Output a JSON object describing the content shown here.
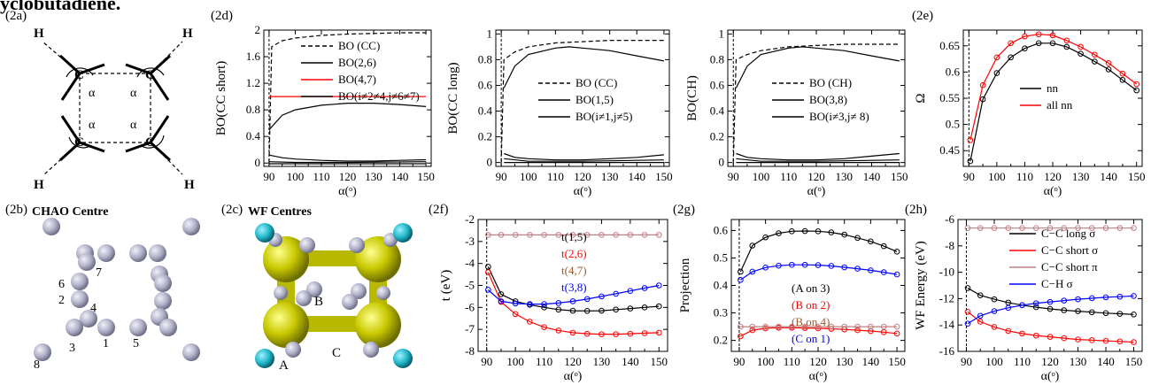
{
  "header_fragment": "yclobutadiene.",
  "panels": {
    "a": "(2a)",
    "b": "(2b)",
    "c": "(2c)",
    "d": "(2d)",
    "e": "(2e)",
    "f": "(2f)",
    "g": "(2g)",
    "h": "(2h)"
  },
  "molecule_2a": {
    "atom": "C",
    "hydrogen": "H",
    "angle": "α"
  },
  "panel_2b": {
    "title": "CHAO Centre",
    "numbers": [
      "7",
      "6",
      "2",
      "4",
      "3",
      "1",
      "5",
      "8"
    ]
  },
  "panel_2c": {
    "title": "WF Centres",
    "labels": [
      "B",
      "A",
      "C"
    ]
  },
  "colors": {
    "black": "#000000",
    "red": "#ff0000",
    "brown": "#a05a2c",
    "blue": "#0000ff",
    "gray": "#c08080",
    "yellow": "#c8c800",
    "cyan": "#20b8c8",
    "atom_gray": "#b8b8cc"
  },
  "chart_data": [
    {
      "id": "d1",
      "type": "line",
      "xlabel": "α(ᵒ)",
      "ylabel": "BO(CC short)",
      "xlim": [
        88,
        152
      ],
      "ylim": [
        -0.05,
        2.0
      ],
      "xticks": [
        "90",
        "100",
        "110",
        "120",
        "130",
        "140",
        "150"
      ],
      "yticks": [
        "0",
        "0.4",
        "0.8",
        "1.2",
        "1.6",
        "2"
      ],
      "legend": [
        "BO (CC)",
        "BO(2,6)",
        "BO(4,7)",
        "BO(i≠2≠4,j≠6≠7)"
      ],
      "series": [
        {
          "name": "BO (CC)",
          "style": "dashed",
          "color": "#000000",
          "x": [
            90,
            91,
            95,
            100,
            110,
            120,
            130,
            140,
            150
          ],
          "y": [
            0.0,
            1.75,
            1.84,
            1.88,
            1.92,
            1.94,
            1.95,
            1.96,
            1.96
          ]
        },
        {
          "name": "BO(2,6)",
          "style": "solid",
          "color": "#000000",
          "x": [
            90,
            95,
            100,
            110,
            120,
            130,
            140,
            150
          ],
          "y": [
            0.5,
            0.72,
            0.8,
            0.87,
            0.9,
            0.9,
            0.88,
            0.85
          ]
        },
        {
          "name": "BO(4,7)",
          "style": "solid",
          "color": "#ff0000",
          "x": [
            90,
            150
          ],
          "y": [
            1.0,
            1.0
          ]
        },
        {
          "name": "BO(i≠2≠4,j≠6≠7)",
          "style": "solid",
          "color": "#000000",
          "x": [
            90,
            95,
            100,
            110,
            120,
            130,
            140,
            150
          ],
          "y": [
            0.12,
            0.08,
            0.06,
            0.04,
            0.03,
            0.03,
            0.04,
            0.05
          ]
        },
        {
          "name": "",
          "style": "solid",
          "color": "#000000",
          "x": [
            90,
            100,
            120,
            150
          ],
          "y": [
            0.02,
            0.01,
            0.01,
            0.02
          ]
        },
        {
          "name": "",
          "style": "solid",
          "color": "#000000",
          "x": [
            90,
            150
          ],
          "y": [
            -0.01,
            -0.01
          ]
        }
      ]
    },
    {
      "id": "d2",
      "type": "line",
      "xlabel": "α(ᵒ)",
      "ylabel": "BO(CC long)",
      "xlim": [
        88,
        152
      ],
      "ylim": [
        -0.03,
        1.03
      ],
      "xticks": [
        "90",
        "100",
        "110",
        "120",
        "130",
        "140",
        "150"
      ],
      "yticks": [
        "0",
        "0.2",
        "0.4",
        "0.6",
        "0.8",
        "1"
      ],
      "legend": [
        "BO (CC)",
        "BO(1,5)",
        "BO(i≠1,j≠5)"
      ],
      "series": [
        {
          "name": "BO (CC)",
          "style": "dashed",
          "color": "#000000",
          "x": [
            90,
            91,
            95,
            100,
            110,
            120,
            130,
            140,
            150
          ],
          "y": [
            0.0,
            0.8,
            0.86,
            0.9,
            0.93,
            0.94,
            0.95,
            0.95,
            0.95
          ]
        },
        {
          "name": "BO(1,5)",
          "style": "solid",
          "color": "#000000",
          "x": [
            91,
            95,
            100,
            110,
            115,
            120,
            130,
            140,
            150
          ],
          "y": [
            0.58,
            0.75,
            0.84,
            0.89,
            0.9,
            0.89,
            0.87,
            0.83,
            0.79
          ]
        },
        {
          "name": "BO(i≠1,j≠5)",
          "style": "solid",
          "color": "#000000",
          "x": [
            91,
            95,
            100,
            110,
            120,
            130,
            140,
            150
          ],
          "y": [
            0.07,
            0.04,
            0.03,
            0.02,
            0.02,
            0.03,
            0.04,
            0.06
          ]
        },
        {
          "name": "",
          "style": "solid",
          "color": "#000000",
          "x": [
            91,
            100,
            120,
            150
          ],
          "y": [
            0.03,
            0.01,
            0.01,
            0.02
          ]
        },
        {
          "name": "",
          "style": "solid",
          "color": "#000000",
          "x": [
            91,
            150
          ],
          "y": [
            0.0,
            0.0
          ]
        }
      ]
    },
    {
      "id": "d3",
      "type": "line",
      "xlabel": "α(ᵒ)",
      "ylabel": "BO(CH)",
      "xlim": [
        88,
        152
      ],
      "ylim": [
        -0.03,
        1.03
      ],
      "xticks": [
        "90",
        "100",
        "110",
        "120",
        "130",
        "140",
        "150"
      ],
      "yticks": [
        "0",
        "0.2",
        "0.4",
        "0.6",
        "0.8",
        "1"
      ],
      "legend": [
        "BO (CH)",
        "BO(3,8)",
        "BO(i≠3,j≠ 8)"
      ],
      "series": [
        {
          "name": "BO (CH)",
          "style": "dashed",
          "color": "#000000",
          "x": [
            90,
            91,
            95,
            100,
            110,
            120,
            130,
            140,
            150
          ],
          "y": [
            0.0,
            0.8,
            0.84,
            0.87,
            0.9,
            0.91,
            0.92,
            0.92,
            0.92
          ]
        },
        {
          "name": "BO(3,8)",
          "style": "solid",
          "color": "#000000",
          "x": [
            91,
            95,
            100,
            110,
            115,
            120,
            130,
            140,
            150
          ],
          "y": [
            0.58,
            0.75,
            0.84,
            0.89,
            0.9,
            0.89,
            0.87,
            0.83,
            0.79
          ]
        },
        {
          "name": "BO(i≠3,j≠ 8)",
          "style": "solid",
          "color": "#000000",
          "x": [
            91,
            95,
            100,
            110,
            120,
            130,
            140,
            150
          ],
          "y": [
            0.07,
            0.04,
            0.03,
            0.02,
            0.02,
            0.03,
            0.05,
            0.07
          ]
        },
        {
          "name": "",
          "style": "solid",
          "color": "#000000",
          "x": [
            91,
            100,
            120,
            150
          ],
          "y": [
            0.03,
            0.01,
            0.01,
            0.02
          ]
        },
        {
          "name": "",
          "style": "solid",
          "color": "#000000",
          "x": [
            91,
            150
          ],
          "y": [
            0.0,
            0.0
          ]
        }
      ]
    },
    {
      "id": "e",
      "type": "line",
      "xlabel": "α(ᵒ)",
      "ylabel": "Ω",
      "xlim": [
        88,
        152
      ],
      "ylim": [
        0.42,
        0.68
      ],
      "xticks": [
        "90",
        "100",
        "110",
        "120",
        "130",
        "140",
        "150"
      ],
      "yticks": [
        "0.45",
        "0.5",
        "0.55",
        "0.6",
        "0.65"
      ],
      "legend": [
        "nn",
        "all nn"
      ],
      "series": [
        {
          "name": "nn",
          "color": "#000000",
          "markers": true,
          "x": [
            90.5,
            95,
            100,
            105,
            110,
            115,
            120,
            125,
            130,
            135,
            140,
            145,
            150
          ],
          "y": [
            0.43,
            0.548,
            0.598,
            0.628,
            0.645,
            0.655,
            0.655,
            0.648,
            0.635,
            0.62,
            0.605,
            0.585,
            0.565
          ]
        },
        {
          "name": "all nn",
          "color": "#ff0000",
          "markers": true,
          "x": [
            90.5,
            95,
            100,
            105,
            110,
            115,
            120,
            125,
            130,
            135,
            140,
            145,
            150
          ],
          "y": [
            0.47,
            0.575,
            0.628,
            0.655,
            0.668,
            0.672,
            0.67,
            0.66,
            0.648,
            0.633,
            0.617,
            0.597,
            0.577
          ]
        }
      ]
    },
    {
      "id": "f",
      "type": "line",
      "xlabel": "α(ᵒ)",
      "ylabel": "t (eV)",
      "xlim": [
        87,
        153
      ],
      "ylim": [
        -8,
        -2
      ],
      "xticks": [
        "90",
        "100",
        "110",
        "120",
        "130",
        "140",
        "150"
      ],
      "yticks": [
        "-8",
        "-7",
        "-6",
        "-5",
        "-4",
        "-3",
        "-2"
      ],
      "legend": [
        "t(1,5)",
        "t(2,6)",
        "t(4,7)",
        "t(3,8)"
      ],
      "series": [
        {
          "name": "t(1,5)",
          "color": "#000000",
          "markers": true,
          "x": [
            90.5,
            95,
            100,
            105,
            110,
            115,
            120,
            125,
            130,
            135,
            140,
            145,
            150
          ],
          "y": [
            -4.15,
            -5.4,
            -5.72,
            -5.88,
            -6.0,
            -6.1,
            -6.15,
            -6.16,
            -6.15,
            -6.1,
            -6.05,
            -6.0,
            -5.95
          ]
        },
        {
          "name": "t(2,6)",
          "color": "#ff0000",
          "markers": true,
          "x": [
            90.5,
            95,
            100,
            105,
            110,
            115,
            120,
            125,
            130,
            135,
            140,
            145,
            150
          ],
          "y": [
            -4.4,
            -5.75,
            -6.3,
            -6.65,
            -6.9,
            -7.05,
            -7.15,
            -7.2,
            -7.22,
            -7.22,
            -7.2,
            -7.17,
            -7.15
          ]
        },
        {
          "name": "t(4,7)",
          "color": "#c08080",
          "markers": true,
          "x": [
            90.5,
            95,
            100,
            105,
            110,
            115,
            120,
            125,
            130,
            135,
            140,
            145,
            150
          ],
          "y": [
            -2.7,
            -2.7,
            -2.7,
            -2.7,
            -2.7,
            -2.7,
            -2.7,
            -2.7,
            -2.7,
            -2.7,
            -2.7,
            -2.7,
            -2.7
          ]
        },
        {
          "name": "t(3,8)",
          "color": "#0000ff",
          "markers": true,
          "x": [
            90.5,
            95,
            100,
            105,
            110,
            115,
            120,
            125,
            130,
            135,
            140,
            145,
            150
          ],
          "y": [
            -5.2,
            -5.72,
            -5.82,
            -5.85,
            -5.85,
            -5.8,
            -5.72,
            -5.62,
            -5.5,
            -5.38,
            -5.25,
            -5.12,
            -5.0
          ]
        }
      ]
    },
    {
      "id": "g",
      "type": "line",
      "xlabel": "α(ᵒ)",
      "ylabel": "Projection",
      "xlim": [
        87,
        153
      ],
      "ylim": [
        0.16,
        0.64
      ],
      "xticks": [
        "90",
        "100",
        "110",
        "120",
        "130",
        "140",
        "150"
      ],
      "yticks": [
        "0.2",
        "0.3",
        "0.4",
        "0.5",
        "0.6"
      ],
      "legend": [
        "(A on 3)",
        "(B on 2)",
        "(B on 4)",
        "(C on 1)"
      ],
      "series": [
        {
          "name": "(A on 3)",
          "color": "#000000",
          "markers": true,
          "x": [
            90.5,
            95,
            100,
            105,
            110,
            115,
            120,
            125,
            130,
            135,
            140,
            145,
            150
          ],
          "y": [
            0.45,
            0.545,
            0.575,
            0.59,
            0.597,
            0.598,
            0.597,
            0.593,
            0.585,
            0.573,
            0.56,
            0.543,
            0.523
          ]
        },
        {
          "name": "(B on 2)",
          "color": "#ff0000",
          "markers": true,
          "x": [
            90.5,
            95,
            100,
            105,
            110,
            115,
            120,
            125,
            130,
            135,
            140,
            145,
            150
          ],
          "y": [
            0.215,
            0.237,
            0.244,
            0.246,
            0.246,
            0.245,
            0.244,
            0.242,
            0.24,
            0.237,
            0.234,
            0.23,
            0.225
          ]
        },
        {
          "name": "(B on 4)",
          "color": "#c08080",
          "markers": true,
          "x": [
            90.5,
            95,
            100,
            105,
            110,
            115,
            120,
            125,
            130,
            135,
            140,
            145,
            150
          ],
          "y": [
            0.25,
            0.25,
            0.25,
            0.25,
            0.25,
            0.25,
            0.25,
            0.25,
            0.25,
            0.25,
            0.25,
            0.25,
            0.25
          ]
        },
        {
          "name": "(C on 1)",
          "color": "#0000ff",
          "markers": true,
          "x": [
            90.5,
            95,
            100,
            105,
            110,
            115,
            120,
            125,
            130,
            135,
            140,
            145,
            150
          ],
          "y": [
            0.42,
            0.45,
            0.465,
            0.472,
            0.475,
            0.475,
            0.474,
            0.471,
            0.466,
            0.461,
            0.455,
            0.448,
            0.44
          ]
        }
      ]
    },
    {
      "id": "h",
      "type": "line",
      "xlabel": "α(ᵒ)",
      "ylabel": "WF Energy (eV)",
      "xlim": [
        87,
        153
      ],
      "ylim": [
        -16,
        -6
      ],
      "xticks": [
        "90",
        "100",
        "110",
        "120",
        "130",
        "140",
        "150"
      ],
      "yticks": [
        "-16",
        "-14",
        "-12",
        "-10",
        "-8",
        "-6"
      ],
      "legend": [
        "C−C long  σ",
        "C−C short  σ",
        "C−C short  π",
        "C−H σ"
      ],
      "series": [
        {
          "name": "C−C long  σ",
          "color": "#000000",
          "markers": true,
          "x": [
            90.5,
            95,
            100,
            105,
            110,
            115,
            120,
            125,
            130,
            135,
            140,
            145,
            150
          ],
          "y": [
            -11.2,
            -11.75,
            -12.05,
            -12.3,
            -12.5,
            -12.65,
            -12.78,
            -12.88,
            -12.95,
            -13.03,
            -13.1,
            -13.15,
            -13.2
          ]
        },
        {
          "name": "C−C short  σ",
          "color": "#ff0000",
          "markers": true,
          "x": [
            90.5,
            95,
            100,
            105,
            110,
            115,
            120,
            125,
            130,
            135,
            140,
            145,
            150
          ],
          "y": [
            -13.0,
            -13.75,
            -14.15,
            -14.45,
            -14.65,
            -14.8,
            -14.9,
            -15.0,
            -15.1,
            -15.15,
            -15.2,
            -15.25,
            -15.3
          ]
        },
        {
          "name": "C−C short  π",
          "color": "#c08080",
          "markers": true,
          "x": [
            90.5,
            95,
            100,
            105,
            110,
            115,
            120,
            125,
            130,
            135,
            140,
            145,
            150
          ],
          "y": [
            -6.65,
            -6.65,
            -6.65,
            -6.65,
            -6.65,
            -6.65,
            -6.65,
            -6.65,
            -6.65,
            -6.65,
            -6.65,
            -6.65,
            -6.65
          ]
        },
        {
          "name": "C−H σ",
          "color": "#0000ff",
          "markers": true,
          "x": [
            90.5,
            95,
            100,
            105,
            110,
            115,
            120,
            125,
            130,
            135,
            140,
            145,
            150
          ],
          "y": [
            -13.9,
            -13.3,
            -12.95,
            -12.7,
            -12.5,
            -12.35,
            -12.25,
            -12.15,
            -12.05,
            -11.97,
            -11.9,
            -11.85,
            -11.8
          ]
        }
      ]
    }
  ]
}
